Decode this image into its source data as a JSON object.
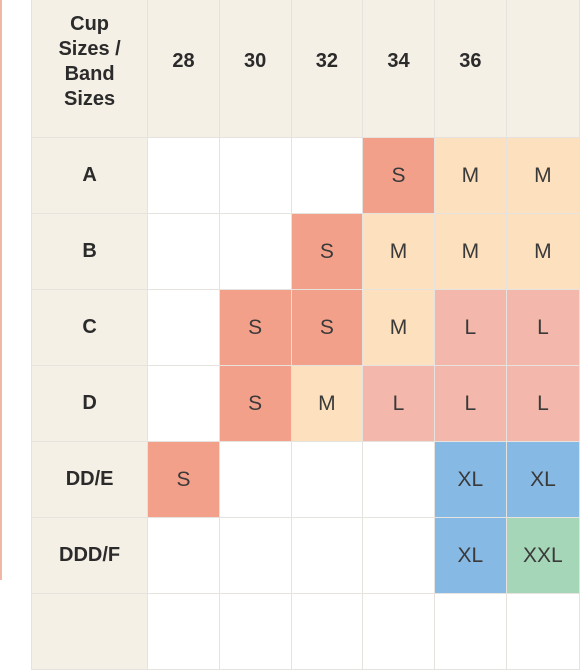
{
  "table": {
    "corner_lines": [
      "Cup",
      "Sizes /",
      "Band",
      "Sizes"
    ],
    "bands": [
      "28",
      "30",
      "32",
      "34",
      "36",
      ""
    ],
    "rows": [
      {
        "cup": "A",
        "cells": [
          "",
          "",
          "",
          "S",
          "M",
          "M"
        ]
      },
      {
        "cup": "B",
        "cells": [
          "",
          "",
          "S",
          "M",
          "M",
          "M"
        ]
      },
      {
        "cup": "C",
        "cells": [
          "",
          "S",
          "S",
          "M",
          "L",
          "L"
        ]
      },
      {
        "cup": "D",
        "cells": [
          "",
          "S",
          "M",
          "L",
          "L",
          "L"
        ]
      },
      {
        "cup": "DD/E",
        "cells": [
          "S",
          "",
          "",
          "",
          "XL",
          "XL"
        ]
      },
      {
        "cup": "DDD/F",
        "cells": [
          "",
          "",
          "",
          "",
          "XL",
          "XXL"
        ]
      },
      {
        "cup": "",
        "cells": [
          "",
          "",
          "",
          "",
          "",
          ""
        ]
      }
    ]
  },
  "colors": {
    "S": "#f3a08a",
    "M": "#fde0bd",
    "L": "#f4b7ab",
    "XL": "#87b9e5",
    "XXL": "#a5d6b8",
    "header_bg": "#f5f0e6"
  }
}
